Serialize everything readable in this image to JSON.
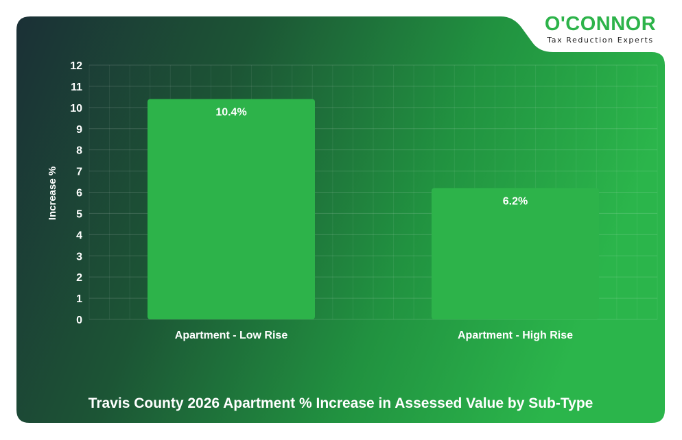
{
  "brand": {
    "name": "O'CONNOR",
    "tagline": "Tax Reduction Experts"
  },
  "colors": {
    "bar": "#2db34a",
    "text": "#ffffff",
    "grid": "#ffffff"
  },
  "chart_data": {
    "type": "bar",
    "title": "Travis County 2026 Apartment % Increase in Assessed Value by Sub-Type",
    "xlabel": "",
    "ylabel": "Increase %",
    "categories": [
      "Apartment - Low Rise",
      "Apartment - High Rise"
    ],
    "values": [
      10.4,
      6.2
    ],
    "data_labels": [
      "10.4%",
      "6.2%"
    ],
    "ylim": [
      0,
      12
    ],
    "yticks": [
      0,
      1,
      2,
      3,
      4,
      5,
      6,
      7,
      8,
      9,
      10,
      11,
      12
    ],
    "grid": true
  }
}
